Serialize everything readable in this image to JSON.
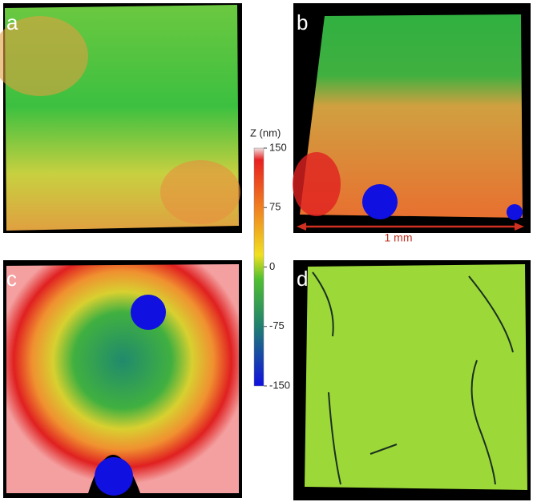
{
  "panels": [
    {
      "label": "a"
    },
    {
      "label": "b"
    },
    {
      "label": "c"
    },
    {
      "label": "d"
    }
  ],
  "colorbar": {
    "title": "Z (nm)",
    "ticks": [
      150,
      75,
      0,
      -75,
      -150
    ]
  },
  "scale_bar": {
    "label": "1 mm"
  }
}
